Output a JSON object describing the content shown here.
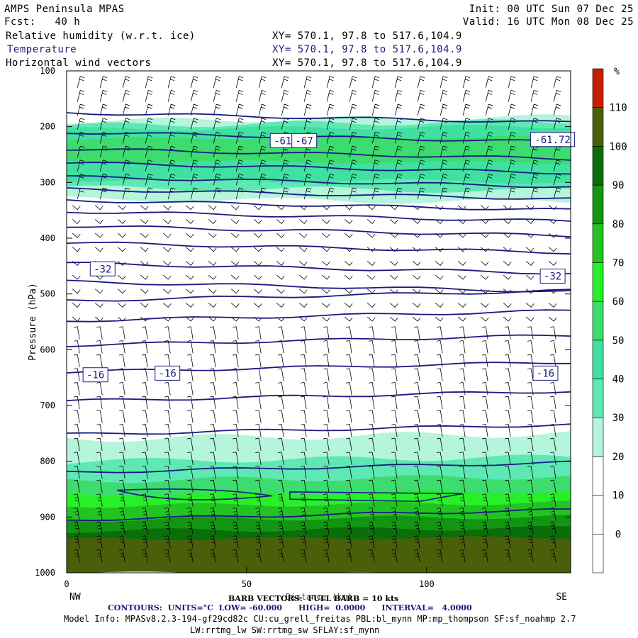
{
  "header": {
    "model": "AMPS Peninsula MPAS",
    "fcst_label": "Fcst:",
    "fcst_value": "40 h",
    "init": "Init: 00 UTC Sun 07 Dec 25",
    "valid": "Valid: 16 UTC Mon 08 Dec 25",
    "fields": [
      {
        "name": "Relative humidity (w.r.t. ice)",
        "xy": "XY= 570.1, 97.8 to 517.6,104.9",
        "color": "#000000"
      },
      {
        "name": "Temperature",
        "xy": "XY= 570.1, 97.8 to 517.6,104.9",
        "color": "#1a1a80"
      },
      {
        "name": "Horizontal wind vectors",
        "xy": "XY= 570.1, 97.8 to 517.6,104.9",
        "color": "#000000"
      }
    ]
  },
  "chart_data": {
    "type": "heatmap",
    "title": "Relative humidity (w.r.t. ice) / Temperature / Horizontal wind vectors",
    "xlabel": "Distance (km)",
    "ylabel": "Pressure (hPa)",
    "xlim": [
      0,
      140
    ],
    "ylim": [
      1000,
      100
    ],
    "x_ticks": [
      0,
      50,
      100
    ],
    "y_ticks": [
      100,
      200,
      300,
      400,
      500,
      600,
      700,
      800,
      900,
      1000
    ],
    "end_labels": {
      "left": "NW",
      "right": "SE"
    },
    "colorbar": {
      "unit": "%",
      "levels": [
        0,
        10,
        20,
        30,
        40,
        50,
        60,
        70,
        80,
        90,
        100,
        110
      ],
      "colors": [
        "#ffffff",
        "#ffffff",
        "#ffffff",
        "#b4f5dc",
        "#5ee8b4",
        "#40e0a0",
        "#3cdc6e",
        "#28f028",
        "#22c422",
        "#129612",
        "#0a6e0a",
        "#4a5f0a",
        "#c81e00"
      ]
    },
    "rh_bands": [
      {
        "p_top": 190,
        "p_bottom": 320,
        "peak": 55,
        "note": "upper-level moist layer"
      },
      {
        "p_top": 750,
        "p_bottom": 1000,
        "peak": 105,
        "note": "boundary-layer moist layer"
      }
    ],
    "temperature_contours": {
      "units": "°C",
      "low": -60.0,
      "high": 0.0,
      "interval": 4.0,
      "labels": [
        {
          "text": "-61",
          "x": 60,
          "p": 225
        },
        {
          "text": "-67",
          "x": 66,
          "p": 225
        },
        {
          "text": "-61.72",
          "x": 135,
          "p": 223
        },
        {
          "text": "-32",
          "x": 10,
          "p": 455
        },
        {
          "text": "-32",
          "x": 135,
          "p": 468
        },
        {
          "text": "-16",
          "x": 8,
          "p": 645
        },
        {
          "text": "-16",
          "x": 28,
          "p": 642
        },
        {
          "text": "-16",
          "x": 133,
          "p": 642
        }
      ]
    },
    "wind_barbs": {
      "full_barb_kts": 10
    }
  },
  "footer": {
    "barb_line": "BARB VECTORS:  FULL BARB = 10 kts",
    "contours_label": "CONTOURS:",
    "units": "UNITS=°C",
    "low": "LOW= -60.000",
    "high": "HIGH=  0.0000",
    "interval": "INTERVAL=   4.0000",
    "model_info": "Model Info: MPASv8.2.3-194-gf29cd82c CU:cu_grell_freitas PBL:bl_mynn MP:mp_thompson SF:sf_noahmp 2.7",
    "model_info2": "LW:rrtmg_lw SW:rrtmg_sw SFLAY:sf_mynn"
  }
}
